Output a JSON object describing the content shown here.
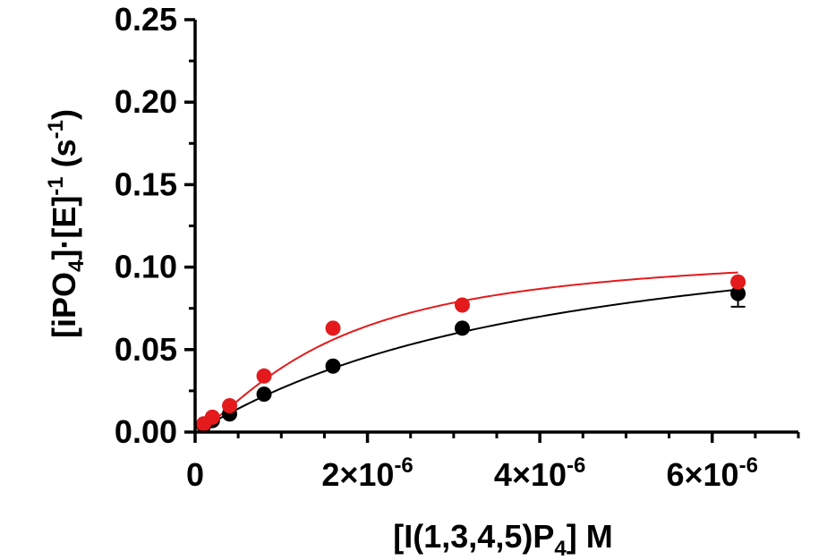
{
  "chart_data": {
    "type": "scatter",
    "xlabel": {
      "main": "[I(1,3,4,5)P",
      "sub": "4",
      "tail": "] M"
    },
    "ylabel": {
      "a": "[iPO",
      "a_sub": "4",
      "b": "]·[E]",
      "b_sup": "-1",
      "c": " (s",
      "c_sup": "-1",
      "d": ")"
    },
    "xlim": [
      0,
      7e-06
    ],
    "ylim": [
      0,
      0.25
    ],
    "x_ticks": [
      {
        "value": 0,
        "label": "0",
        "mant": "",
        "exp": ""
      },
      {
        "value": 2e-06,
        "label": "",
        "mant": "2×10",
        "exp": "-6"
      },
      {
        "value": 4e-06,
        "label": "",
        "mant": "4×10",
        "exp": "-6"
      },
      {
        "value": 6e-06,
        "label": "",
        "mant": "6×10",
        "exp": "-6"
      }
    ],
    "y_ticks": [
      {
        "value": 0.0,
        "label": "0.00"
      },
      {
        "value": 0.05,
        "label": "0.05"
      },
      {
        "value": 0.1,
        "label": "0.10"
      },
      {
        "value": 0.15,
        "label": "0.15"
      },
      {
        "value": 0.2,
        "label": "0.20"
      },
      {
        "value": 0.25,
        "label": "0.25"
      }
    ],
    "grid": false,
    "series": [
      {
        "color": "#000000",
        "x": [
          1e-07,
          2e-07,
          4e-07,
          8e-07,
          1.6e-06,
          3.1e-06,
          6.3e-06
        ],
        "y": [
          0.004,
          0.007,
          0.011,
          0.023,
          0.04,
          0.063,
          0.084
        ],
        "error_y": [
          0,
          0,
          0,
          0,
          0,
          0,
          0.008
        ],
        "fit": {
          "vmax": 0.14,
          "k": 4e-06,
          "n": 1.05
        }
      },
      {
        "color": "#e41a1c",
        "x": [
          1e-07,
          2e-07,
          4e-07,
          8e-07,
          1.6e-06,
          3.1e-06,
          6.3e-06
        ],
        "y": [
          0.005,
          0.009,
          0.016,
          0.034,
          0.063,
          0.077,
          0.091
        ],
        "error_y": [
          0,
          0,
          0,
          0,
          0,
          0,
          0
        ],
        "fit": {
          "vmax": 0.112,
          "k": 1.6e-06,
          "n": 1.35
        }
      }
    ]
  }
}
